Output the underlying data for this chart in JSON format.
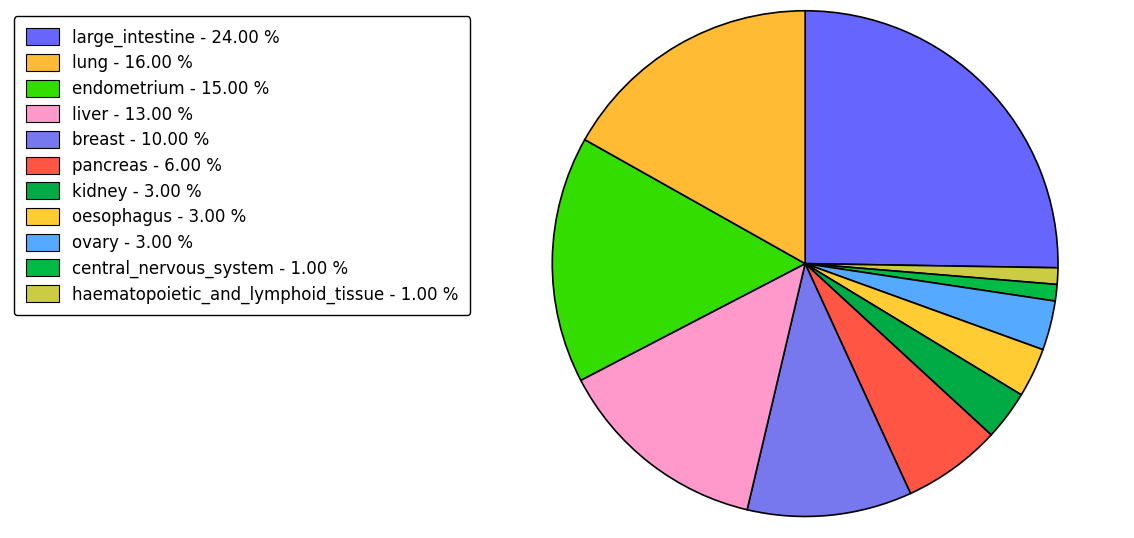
{
  "labels_ordered": [
    "large_intestine",
    "haematopoietic_and_lymphoid_tissue",
    "central_nervous_system",
    "ovary",
    "oesophagus",
    "kidney",
    "pancreas",
    "breast",
    "liver",
    "endometrium",
    "lung"
  ],
  "values_ordered": [
    24,
    1,
    1,
    3,
    3,
    3,
    6,
    10,
    13,
    15,
    16
  ],
  "colors_ordered": [
    "#6666ff",
    "#cccc44",
    "#00bb44",
    "#55aaff",
    "#ffcc33",
    "#00aa44",
    "#ff5544",
    "#7777ee",
    "#ff99cc",
    "#33dd00",
    "#ffbb33"
  ],
  "legend_labels": [
    "large_intestine - 24.00 %",
    "lung - 16.00 %",
    "endometrium - 15.00 %",
    "liver - 13.00 %",
    "breast - 10.00 %",
    "pancreas - 6.00 %",
    "kidney - 3.00 %",
    "oesophagus - 3.00 %",
    "ovary - 3.00 %",
    "central_nervous_system - 1.00 %",
    "haematopoietic_and_lymphoid_tissue - 1.00 %"
  ],
  "legend_colors": [
    "#6666ff",
    "#ffbb33",
    "#33dd00",
    "#ff99cc",
    "#7777ee",
    "#ff5544",
    "#00aa44",
    "#ffcc33",
    "#55aaff",
    "#00bb44",
    "#cccc44"
  ],
  "startangle": 90,
  "figsize": [
    11.34,
    5.38
  ],
  "dpi": 100
}
